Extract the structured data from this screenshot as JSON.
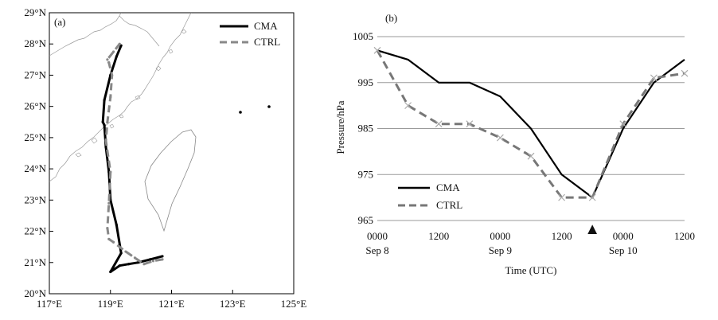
{
  "chart_data": [
    {
      "type": "line",
      "panel_label": "(a)",
      "xlim": [
        117,
        125
      ],
      "ylim": [
        20,
        29
      ],
      "x_ticks": [
        "117°E",
        "119°E",
        "121°E",
        "123°E",
        "125°E"
      ],
      "y_ticks": [
        "20°N",
        "21°N",
        "22°N",
        "23°N",
        "24°N",
        "25°N",
        "26°N",
        "27°N",
        "28°N",
        "29°N"
      ],
      "series": [
        {
          "name": "CMA",
          "color": "#000000",
          "style": "solid",
          "lon": [
            120.7,
            120.3,
            119.9,
            119.6,
            119.3,
            119.0,
            119.35,
            119.2,
            119.0,
            118.95,
            118.85,
            118.8,
            118.75,
            118.8,
            119.0,
            119.2,
            119.35
          ],
          "lat": [
            21.2,
            21.1,
            21.0,
            20.95,
            20.9,
            20.7,
            21.3,
            22.2,
            23.0,
            23.9,
            24.7,
            25.4,
            25.5,
            26.2,
            27.0,
            27.6,
            27.95
          ]
        },
        {
          "name": "CTRL",
          "color": "#888888",
          "style": "dashed",
          "lon": [
            120.7,
            120.4,
            120.1,
            119.8,
            119.5,
            119.1,
            118.95,
            118.9,
            118.95,
            119.0,
            118.85,
            118.9,
            119.0,
            119.05,
            118.95,
            118.9,
            119.1,
            119.3
          ],
          "lat": [
            21.1,
            21.05,
            20.95,
            21.15,
            21.35,
            21.65,
            21.75,
            22.1,
            22.9,
            23.9,
            24.9,
            25.5,
            26.3,
            27.0,
            27.4,
            27.5,
            27.75,
            28.0
          ]
        }
      ]
    },
    {
      "type": "line",
      "panel_label": "(b)",
      "xlabel": "Time (UTC)",
      "ylabel": "Pressure/hPa",
      "ylim": [
        965,
        1005
      ],
      "y_ticks": [
        "965",
        "975",
        "985",
        "995",
        "1005"
      ],
      "x_tick_labels": [
        {
          "time": "0000",
          "date": "Sep 8"
        },
        {
          "time": "1200",
          "date": ""
        },
        {
          "time": "0000",
          "date": "Sep 9"
        },
        {
          "time": "1200",
          "date": ""
        },
        {
          "time": "0000",
          "date": "Sep 10"
        },
        {
          "time": "1200",
          "date": ""
        }
      ],
      "x": [
        0,
        6,
        12,
        18,
        24,
        30,
        36,
        42,
        48,
        54,
        60
      ],
      "marker_time": 42,
      "marker_symbol": "▲",
      "series": [
        {
          "name": "CMA",
          "color": "#000000",
          "style": "solid",
          "values": [
            1002,
            1000,
            995,
            995,
            992,
            985,
            975,
            970,
            985,
            995,
            1000
          ]
        },
        {
          "name": "CTRL",
          "color": "#777777",
          "style": "dashed",
          "values": [
            1002,
            990,
            986,
            986,
            983,
            979,
            970,
            970,
            986,
            996,
            997
          ]
        }
      ]
    }
  ]
}
